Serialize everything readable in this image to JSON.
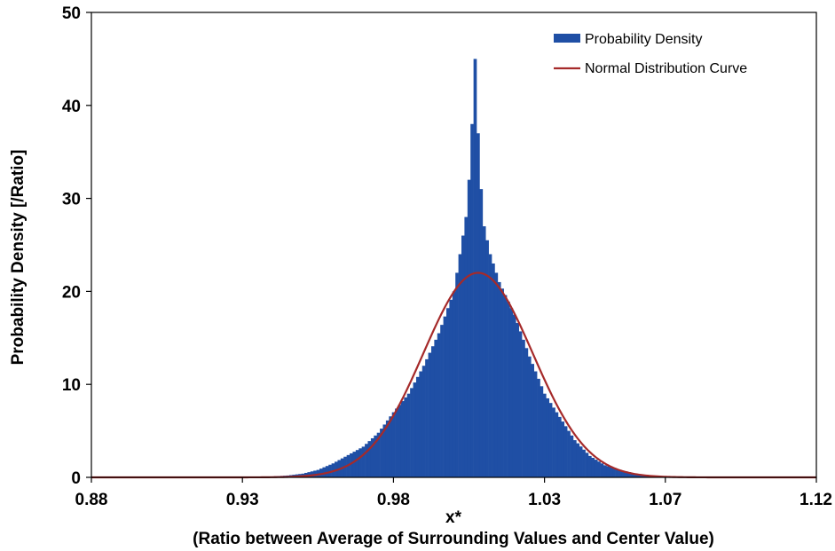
{
  "chart_data": {
    "type": "bar",
    "title": "",
    "ylabel": "Probability Density [/Ratio]",
    "xlabel": "x*",
    "xlabel_sub": "(Ratio between Average of Surrounding Values and Center Value)",
    "xlim": [
      0.88,
      1.12
    ],
    "ylim": [
      0,
      50
    ],
    "xticks": [
      "0.88",
      "0.93",
      "0.98",
      "1.03",
      "1.07",
      "1.12"
    ],
    "xtick_values": [
      0.88,
      0.93,
      0.98,
      1.03,
      1.07,
      1.12
    ],
    "yticks": [
      "0",
      "10",
      "20",
      "30",
      "40",
      "50"
    ],
    "ytick_values": [
      0,
      10,
      20,
      30,
      40,
      50
    ],
    "grid": false,
    "legend_position": "top-right",
    "series": [
      {
        "name": "Probability Density",
        "kind": "histogram",
        "color": "#1f4fa5",
        "bin_width": 0.001,
        "x": [
          0.94,
          0.945,
          0.95,
          0.955,
          0.96,
          0.965,
          0.97,
          0.975,
          0.98,
          0.985,
          0.99,
          0.995,
          1.0,
          1.002,
          1.004,
          1.005,
          1.006,
          1.007,
          1.008,
          1.009,
          1.01,
          1.012,
          1.015,
          1.02,
          1.025,
          1.03,
          1.035,
          1.04,
          1.045,
          1.05,
          1.055,
          1.06,
          1.065,
          1.07
        ],
        "values": [
          0.1,
          0.2,
          0.4,
          0.8,
          1.5,
          2.4,
          3.3,
          4.8,
          7.0,
          9.0,
          12.0,
          15.5,
          20.0,
          24.0,
          28.0,
          32.0,
          38.0,
          45.0,
          37.0,
          31.0,
          27.0,
          24.0,
          21.0,
          17.5,
          13.0,
          9.0,
          6.5,
          4.0,
          2.3,
          1.3,
          0.8,
          0.4,
          0.2,
          0.1
        ]
      },
      {
        "name": "Normal Distribution Curve",
        "kind": "line",
        "color": "#a52a2a",
        "mean": 1.008,
        "std": 0.0181,
        "peak": 22.0
      }
    ]
  }
}
